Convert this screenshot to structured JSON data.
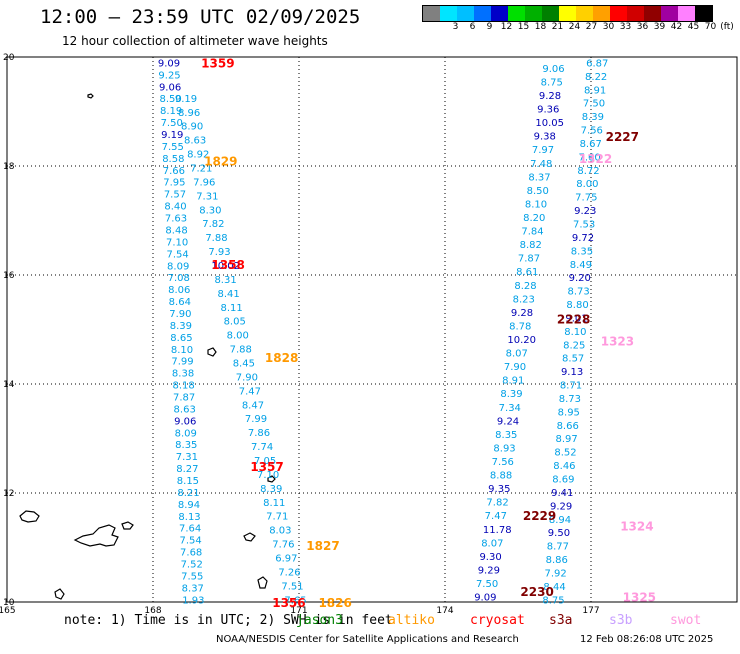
{
  "header": {
    "title": "12:00 – 23:59 UTC 02/09/2025",
    "subtitle": "12 hour collection of altimeter wave heights"
  },
  "legend": {
    "unit": "(ft)",
    "bins": [
      {
        "label": "",
        "color": "#808080"
      },
      {
        "label": "3",
        "color": "#00e5ff"
      },
      {
        "label": "6",
        "color": "#00bfff"
      },
      {
        "label": "9",
        "color": "#0070ff"
      },
      {
        "label": "12",
        "color": "#0000c8"
      },
      {
        "label": "15",
        "color": "#00e000"
      },
      {
        "label": "18",
        "color": "#00b000"
      },
      {
        "label": "21",
        "color": "#008000"
      },
      {
        "label": "24",
        "color": "#ffff00"
      },
      {
        "label": "27",
        "color": "#ffd000"
      },
      {
        "label": "30",
        "color": "#ffa000"
      },
      {
        "label": "33",
        "color": "#ff0000"
      },
      {
        "label": "36",
        "color": "#d00000"
      },
      {
        "label": "39",
        "color": "#900000"
      },
      {
        "label": "42",
        "color": "#a000a0"
      },
      {
        "label": "45",
        "color": "#ff80ff"
      },
      {
        "label": "70",
        "color": "#000000"
      }
    ]
  },
  "map": {
    "lon_ticks": [
      "165",
      "168",
      "171",
      "174",
      "177"
    ],
    "lat_ticks": [
      "20",
      "18",
      "16",
      "14",
      "12",
      "10"
    ],
    "lon_range": [
      165,
      180
    ],
    "lat_range": [
      10,
      20
    ],
    "grid": true
  },
  "track_colors": {
    "light": "#00a0e6",
    "dark": "#0000b4"
  },
  "pass_labels": [
    {
      "text": "1359",
      "lon": 168.99,
      "lat": 19.9,
      "color": "#ff0000"
    },
    {
      "text": "1829",
      "lon": 169.05,
      "lat": 18.1,
      "color": "#ff9900"
    },
    {
      "text": "1358",
      "lon": 169.2,
      "lat": 16.2,
      "color": "#ff0000"
    },
    {
      "text": "1828",
      "lon": 170.3,
      "lat": 14.5,
      "color": "#ff9900"
    },
    {
      "text": "1357",
      "lon": 170.0,
      "lat": 12.5,
      "color": "#ff0000"
    },
    {
      "text": "1827",
      "lon": 171.15,
      "lat": 11.05,
      "color": "#ff9900"
    },
    {
      "text": "1356",
      "lon": 170.45,
      "lat": 10.0,
      "color": "#ff0000"
    },
    {
      "text": "1826",
      "lon": 171.4,
      "lat": 10.0,
      "color": "#ff9900"
    },
    {
      "text": "2227",
      "lon": 177.3,
      "lat": 18.55,
      "color": "#800000"
    },
    {
      "text": "1322",
      "lon": 176.75,
      "lat": 18.15,
      "color": "#ff99dd"
    },
    {
      "text": "2228",
      "lon": 176.3,
      "lat": 15.2,
      "color": "#800000"
    },
    {
      "text": "1323",
      "lon": 177.2,
      "lat": 14.8,
      "color": "#ff99dd"
    },
    {
      "text": "2229",
      "lon": 175.6,
      "lat": 11.6,
      "color": "#800000"
    },
    {
      "text": "1324",
      "lon": 177.6,
      "lat": 11.4,
      "color": "#ff99dd"
    },
    {
      "text": "2230",
      "lon": 175.55,
      "lat": 10.2,
      "color": "#800000"
    },
    {
      "text": "1325",
      "lon": 177.65,
      "lat": 10.1,
      "color": "#ff99dd"
    }
  ],
  "tracks": [
    {
      "values": [
        "9.09",
        "9.25",
        "9.06",
        "8.50",
        "8.19",
        "7.50",
        "9.19",
        "7.55",
        "8.58",
        "7.66",
        "7.95",
        "7.57",
        "8.40",
        "7.63",
        "8.48",
        "7.10",
        "7.54",
        "8.09",
        "7.08",
        "8.06",
        "8.64",
        "7.90",
        "8.39",
        "8.65",
        "8.10",
        "7.99",
        "8.38",
        "8.18",
        "7.87",
        "8.63",
        "9.06",
        "8.09",
        "8.35",
        "7.31",
        "8.27",
        "8.15",
        "8.21",
        "8.94",
        "8.13",
        "7.64",
        "7.54",
        "7.68",
        "7.52",
        "7.55",
        "8.37",
        "1.93"
      ],
      "dark": [
        0,
        2,
        6,
        30
      ],
      "lon": [
        168.1,
        168.6
      ],
      "lat": [
        19.9,
        10.05
      ]
    },
    {
      "values": [
        "9.19",
        "8.96",
        "8.90",
        "8.63",
        "8.92",
        "7.21",
        "7.96",
        "7.31",
        "8.30",
        "7.82",
        "7.88",
        "7.93",
        "10.02",
        "8.31",
        "8.41",
        "8.11",
        "8.05",
        "8.00",
        "7.88",
        "8.45",
        "7.90",
        "7.47",
        "8.47",
        "7.99",
        "7.86",
        "7.74",
        "7.05",
        "7.10",
        "8.39",
        "8.11",
        "7.71",
        "8.03",
        "7.76",
        "6.97",
        "7.26",
        "7.51",
        "7.65"
      ],
      "dark": [
        12
      ],
      "lon": [
        168.45,
        170.7
      ],
      "lat": [
        19.25,
        10.05
      ]
    },
    {
      "values": [
        "9.06",
        "8.75",
        "9.28",
        "9.36",
        "10.05",
        "9.38",
        "7.97",
        "7.48",
        "8.37",
        "8.50",
        "8.10",
        "8.20",
        "7.84",
        "8.82",
        "7.87",
        "8.61",
        "8.28",
        "8.23",
        "9.28",
        "8.78",
        "10.20",
        "8.07",
        "7.90",
        "8.91",
        "8.39",
        "7.34",
        "9.24",
        "8.35",
        "8.93",
        "7.56",
        "8.88",
        "9.35",
        "7.82",
        "7.47",
        "11.78",
        "8.07",
        "9.30",
        "9.29",
        "7.50",
        "9.09"
      ],
      "dark": [
        2,
        3,
        4,
        5,
        18,
        20,
        26,
        31,
        34,
        36,
        37,
        39
      ],
      "lon": [
        176.0,
        174.6
      ],
      "lat": [
        19.8,
        10.1
      ]
    },
    {
      "values": [
        "6.87",
        "8.22",
        "8.91",
        "7.50",
        "8.39",
        "7.56",
        "8.67",
        "7.60",
        "8.72",
        "8.00",
        "7.75",
        "9.23",
        "7.53",
        "9.72",
        "8.35",
        "8.49",
        "9.20",
        "8.73",
        "8.80",
        "9.01",
        "8.10",
        "8.25",
        "8.57",
        "9.13",
        "8.71",
        "8.73",
        "8.95",
        "8.66",
        "8.97",
        "8.52",
        "8.46",
        "8.69",
        "9.41",
        "9.29",
        "8.94",
        "9.50",
        "8.77",
        "8.86",
        "7.92",
        "8.44",
        "8.75"
      ],
      "dark": [
        11,
        13,
        16,
        19,
        23,
        32,
        33,
        35
      ],
      "lon": [
        176.9,
        176.0
      ],
      "lat": [
        19.9,
        10.05
      ]
    }
  ],
  "footer": {
    "note": "note:  1) Time is in UTC;  2) SWH is in feet",
    "satellites": [
      {
        "name": "jason3",
        "color": "#008000"
      },
      {
        "name": "altiko",
        "color": "#ff9900"
      },
      {
        "name": "cryosat",
        "color": "#ff0000"
      },
      {
        "name": "s3a",
        "color": "#800000"
      },
      {
        "name": "s3b",
        "color": "#c8a0ff"
      },
      {
        "name": "swot",
        "color": "#ff99dd"
      }
    ],
    "credit": "NOAA/NESDIS Center for Satellite Applications and Research",
    "timestamp": "12 Feb 08:26:08 UTC 2025"
  }
}
